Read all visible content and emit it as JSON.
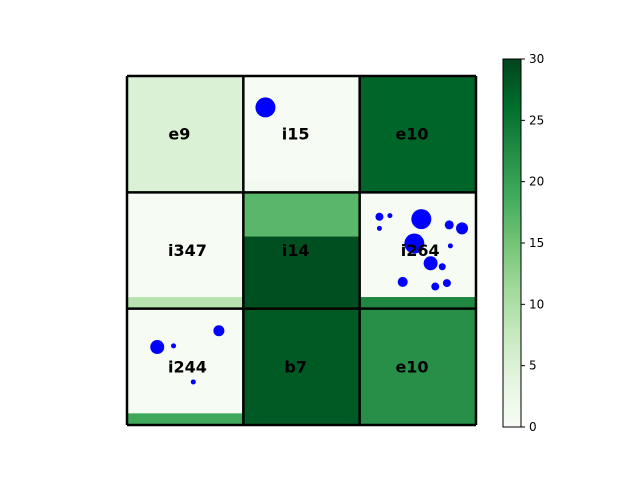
{
  "chart_data": {
    "type": "heatmap",
    "title": "",
    "xlabel": "",
    "ylabel": "",
    "colormap": "Greens",
    "color_range": [
      0,
      30
    ],
    "colorbar_ticks": [
      "0",
      "5",
      "10",
      "15",
      "20",
      "25",
      "30"
    ],
    "grid": {
      "rows": 3,
      "cols": 3
    },
    "cells": [
      {
        "row": 0,
        "col": 0,
        "label": "e9",
        "value": 5,
        "bottom_value": null,
        "bottom_fraction": 0
      },
      {
        "row": 0,
        "col": 1,
        "label": "i15",
        "value": 0.3,
        "bottom_value": 1,
        "bottom_fraction": 0.1
      },
      {
        "row": 0,
        "col": 2,
        "label": "e10",
        "value": 27,
        "bottom_value": null,
        "bottom_fraction": 0
      },
      {
        "row": 1,
        "col": 0,
        "label": "i347",
        "value": 0.3,
        "bottom_value": 9,
        "bottom_fraction": 0.1
      },
      {
        "row": 1,
        "col": 1,
        "label": "i14",
        "value": 17,
        "bottom_value": 29,
        "bottom_fraction": 0.62
      },
      {
        "row": 1,
        "col": 2,
        "label": "i264",
        "value": 0.3,
        "bottom_value": 23,
        "bottom_fraction": 0.1
      },
      {
        "row": 2,
        "col": 0,
        "label": "i244",
        "value": 0.3,
        "bottom_value": 19,
        "bottom_fraction": 0.1
      },
      {
        "row": 2,
        "col": 1,
        "label": "b7",
        "value": 28,
        "bottom_value": null,
        "bottom_fraction": 0
      },
      {
        "row": 2,
        "col": 2,
        "label": "e10",
        "value": 22,
        "bottom_value": null,
        "bottom_fraction": 0
      }
    ],
    "points": [
      {
        "row": 0,
        "col": 1,
        "x": 0.19,
        "y": 0.27,
        "size": 10
      },
      {
        "row": 1,
        "col": 2,
        "x": 0.17,
        "y": 0.21,
        "size": 4
      },
      {
        "row": 1,
        "col": 2,
        "x": 0.26,
        "y": 0.2,
        "size": 2.5
      },
      {
        "row": 1,
        "col": 2,
        "x": 0.17,
        "y": 0.31,
        "size": 2.5
      },
      {
        "row": 1,
        "col": 2,
        "x": 0.53,
        "y": 0.23,
        "size": 10
      },
      {
        "row": 1,
        "col": 2,
        "x": 0.77,
        "y": 0.28,
        "size": 4.5
      },
      {
        "row": 1,
        "col": 2,
        "x": 0.88,
        "y": 0.31,
        "size": 6
      },
      {
        "row": 1,
        "col": 2,
        "x": 0.47,
        "y": 0.44,
        "size": 10
      },
      {
        "row": 1,
        "col": 2,
        "x": 0.78,
        "y": 0.46,
        "size": 2.5
      },
      {
        "row": 1,
        "col": 2,
        "x": 0.61,
        "y": 0.61,
        "size": 7
      },
      {
        "row": 1,
        "col": 2,
        "x": 0.71,
        "y": 0.64,
        "size": 3.5
      },
      {
        "row": 1,
        "col": 2,
        "x": 0.37,
        "y": 0.77,
        "size": 5
      },
      {
        "row": 1,
        "col": 2,
        "x": 0.75,
        "y": 0.78,
        "size": 4
      },
      {
        "row": 1,
        "col": 2,
        "x": 0.65,
        "y": 0.81,
        "size": 4
      },
      {
        "row": 2,
        "col": 0,
        "x": 0.26,
        "y": 0.33,
        "size": 7
      },
      {
        "row": 2,
        "col": 0,
        "x": 0.4,
        "y": 0.32,
        "size": 2.5
      },
      {
        "row": 2,
        "col": 0,
        "x": 0.79,
        "y": 0.19,
        "size": 5.5
      },
      {
        "row": 2,
        "col": 0,
        "x": 0.57,
        "y": 0.63,
        "size": 2.5
      }
    ]
  }
}
